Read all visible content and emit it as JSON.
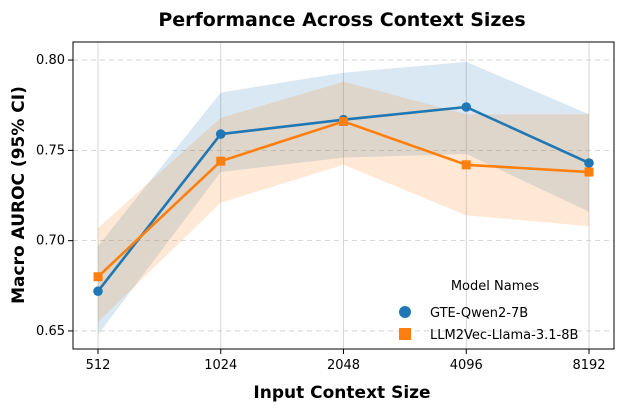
{
  "chart_data": {
    "type": "line",
    "title": "Performance Across Context Sizes",
    "xlabel": "Input Context Size",
    "ylabel": "Macro AUROC (95% CI)",
    "categories": [
      "512",
      "1024",
      "2048",
      "4096",
      "8192"
    ],
    "ylim": [
      0.64,
      0.81
    ],
    "yticks": [
      0.65,
      0.7,
      0.75,
      0.8
    ],
    "ytick_labels": [
      "0.65",
      "0.70",
      "0.75",
      "0.80"
    ],
    "grid": true,
    "legend": {
      "title": "Model Names",
      "placement": "bottom-right"
    },
    "series": [
      {
        "name": "GTE-Qwen2-7B",
        "color": "#1f77b4",
        "marker": "circle",
        "values": [
          0.672,
          0.759,
          0.767,
          0.774,
          0.743
        ],
        "ci_lower": [
          0.648,
          0.738,
          0.746,
          0.748,
          0.716
        ],
        "ci_upper": [
          0.697,
          0.782,
          0.793,
          0.799,
          0.77
        ]
      },
      {
        "name": "LLM2Vec-Llama-3.1-8B",
        "color": "#ff7f0e",
        "marker": "square",
        "values": [
          0.68,
          0.744,
          0.766,
          0.742,
          0.738
        ],
        "ci_lower": [
          0.655,
          0.721,
          0.742,
          0.714,
          0.708
        ],
        "ci_upper": [
          0.707,
          0.768,
          0.788,
          0.77,
          0.77
        ]
      }
    ]
  }
}
